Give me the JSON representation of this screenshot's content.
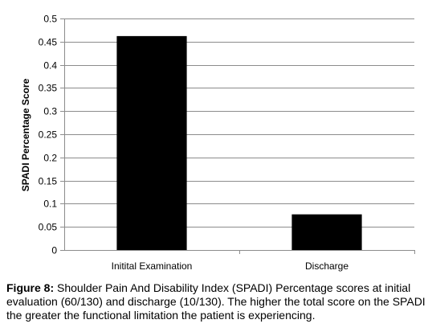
{
  "chart_data": {
    "type": "bar",
    "categories": [
      "Initital Examination",
      "Discharge"
    ],
    "values": [
      0.462,
      0.077
    ],
    "ylabel": "SPADI Percentage Score",
    "ylim": [
      0,
      0.5
    ],
    "yticks": [
      "0",
      "0.05",
      "0.1",
      "0.15",
      "0.2",
      "0.25",
      "0.3",
      "0.35",
      "0.4",
      "0.45",
      "0.5"
    ],
    "grid": true,
    "bar_color": "#000000",
    "grid_color": "#8c8c8c"
  },
  "caption": {
    "label": "Figure 8:",
    "text": " Shoulder Pain And Disability Index (SPADI) Percentage scores at initial evaluation (60/130) and discharge (10/130). The higher the total score on the SPADI the greater the functional limitation the patient is experiencing."
  }
}
